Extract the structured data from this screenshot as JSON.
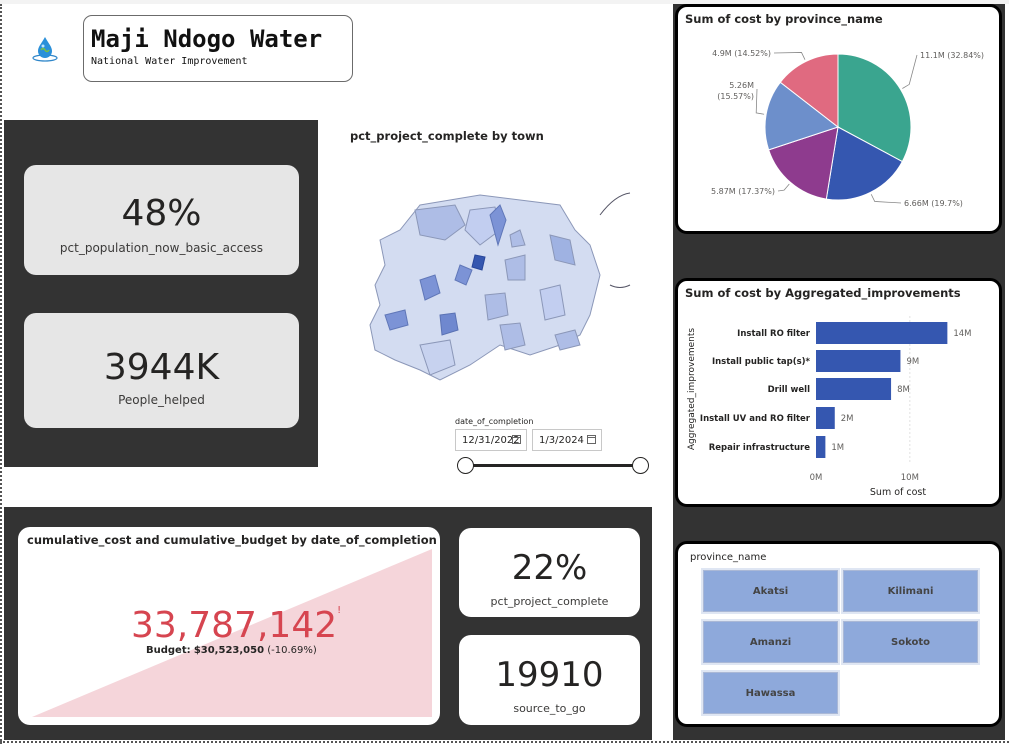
{
  "header": {
    "title": "Maji Ndogo Water",
    "subtitle": "National Water Improvement",
    "logo_icon": "water-drop-globe-icon"
  },
  "kpis": {
    "basic_access": {
      "value": "48%",
      "label": "pct_population_now_basic_access"
    },
    "people_helped": {
      "value": "3944K",
      "label": "People_helped"
    },
    "project_complete": {
      "value": "22%",
      "label": "pct_project_complete"
    },
    "source_to_go": {
      "value": "19910",
      "label": "source_to_go"
    }
  },
  "map": {
    "title": "pct_project_complete by town"
  },
  "date_slicer": {
    "label": "date_of_completion",
    "start": "12/31/2022",
    "end": "1/3/2024"
  },
  "cumulative": {
    "title": "cumulative_cost and cumulative_budget by date_of_completion",
    "value": "33,787,142",
    "value_marker": "!",
    "budget_label": "Budget:",
    "budget_value": "$30,523,050",
    "budget_delta": "(-10.69%)",
    "value_color": "#d64550",
    "area_color": "#f5d5da"
  },
  "pie": {
    "title": "Sum of cost by province_name",
    "colors": [
      "#3aa58f",
      "#3557b0",
      "#8e3b8e",
      "#6d8fcb",
      "#e06a80"
    ]
  },
  "bars": {
    "title": "Sum of cost by Aggregated_improvements",
    "y_axis_label": "Aggregated_improvements",
    "x_axis_label": "Sum of cost",
    "x_ticks": [
      "0M",
      "10M"
    ],
    "bar_color": "#3557b0"
  },
  "province_slicer": {
    "title": "province_name",
    "items": [
      "Akatsi",
      "Kilimani",
      "Amanzi",
      "Sokoto",
      "Hawassa"
    ]
  },
  "chart_data": [
    {
      "type": "pie",
      "title": "Sum of cost by province_name",
      "slices": [
        {
          "value": 11.1,
          "label": "11.1M (32.84%)"
        },
        {
          "value": 6.66,
          "label": "6.66M (19.7%)"
        },
        {
          "value": 5.87,
          "label": "5.87M (17.37%)"
        },
        {
          "value": 5.26,
          "label": "5.26M (15.57%)"
        },
        {
          "value": 4.9,
          "label": "4.9M (14.52%)"
        }
      ]
    },
    {
      "type": "bar",
      "title": "Sum of cost by Aggregated_improvements",
      "categories": [
        "Install RO filter",
        "Install public tap(s)*",
        "Drill well",
        "Install UV and RO filter",
        "Repair infrastructure"
      ],
      "values": [
        14,
        9,
        8,
        2,
        1
      ],
      "value_labels": [
        "14M",
        "9M",
        "8M",
        "2M",
        "1M"
      ],
      "xlabel": "Sum of cost",
      "ylabel": "Aggregated_improvements",
      "xlim": [
        0,
        14.6
      ]
    }
  ]
}
